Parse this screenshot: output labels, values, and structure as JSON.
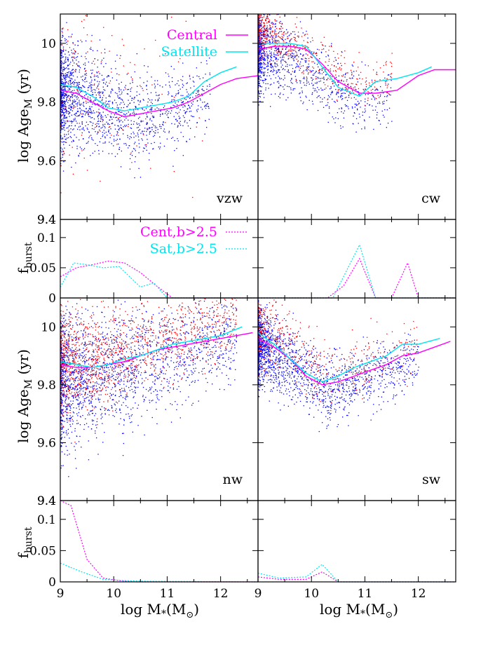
{
  "chart_data": {
    "type": "scatter",
    "x_label": "log M*(M⊙)",
    "x_ticks": [
      "9",
      "10",
      "11",
      "12"
    ],
    "age_ylabel": "log Age_M (yr)",
    "burst_ylabel": "f_burst",
    "age_ticks": [
      "9.4",
      "9.6",
      "9.8",
      "10"
    ],
    "burst_ticks": [
      "0",
      "0.05",
      "0.1"
    ],
    "xlim": [
      9.0,
      12.7
    ],
    "age_ylim": [
      9.4,
      10.1
    ],
    "burst_ylim": [
      0.0,
      0.13
    ],
    "colors": {
      "central": "#ff00ff",
      "satellite": "#00e5ee",
      "red_points": "#ff0000",
      "blue_points": "#0000ff"
    },
    "age_legend": [
      {
        "label": "Central",
        "style": "solid",
        "color": "central"
      },
      {
        "label": "Satellite",
        "style": "solid",
        "color": "satellite"
      }
    ],
    "burst_legend": [
      {
        "label": "Cent,b>2.5",
        "style": "dotted",
        "color": "central"
      },
      {
        "label": "Sat,b>2.5",
        "style": "dotted",
        "color": "satellite"
      }
    ],
    "panels": [
      {
        "tag": "vzw",
        "central": {
          "x": [
            9.0,
            9.3,
            9.6,
            9.9,
            10.2,
            10.5,
            10.8,
            11.1,
            11.4,
            11.7,
            12.0,
            12.3,
            12.7
          ],
          "y": [
            9.84,
            9.83,
            9.8,
            9.77,
            9.75,
            9.76,
            9.77,
            9.78,
            9.8,
            9.83,
            9.86,
            9.88,
            9.89
          ]
        },
        "satellite": {
          "x": [
            9.0,
            9.3,
            9.6,
            9.9,
            10.2,
            10.5,
            10.8,
            11.1,
            11.4,
            11.7,
            12.0,
            12.3
          ],
          "y": [
            9.86,
            9.85,
            9.82,
            9.78,
            9.77,
            9.78,
            9.79,
            9.8,
            9.82,
            9.87,
            9.9,
            9.92
          ]
        },
        "scatter": {
          "peak": [
            9.15,
            9.85
          ],
          "valley": [
            10.4,
            9.76
          ],
          "red_frac": 0.12,
          "count": 1900,
          "red_spread": 0.18,
          "blue_spread": 0.09,
          "max_x": 11.8,
          "decay": 1.4
        }
      },
      {
        "tag": "cw",
        "central": {
          "x": [
            9.0,
            9.3,
            9.6,
            9.9,
            10.2,
            10.5,
            10.9,
            11.2,
            11.6,
            12.0,
            12.3,
            12.7
          ],
          "y": [
            9.98,
            9.99,
            9.99,
            9.98,
            9.93,
            9.87,
            9.83,
            9.83,
            9.84,
            9.89,
            9.91,
            9.91
          ]
        },
        "satellite": {
          "x": [
            9.0,
            9.3,
            9.6,
            9.9,
            10.2,
            10.5,
            10.9,
            11.2,
            11.6,
            12.0,
            12.25
          ],
          "y": [
            10.0,
            10.0,
            10.0,
            9.99,
            9.92,
            9.85,
            9.82,
            9.87,
            9.88,
            9.9,
            9.92
          ]
        },
        "scatter": {
          "peak": [
            9.2,
            10.0
          ],
          "valley": [
            10.9,
            9.82
          ],
          "red_frac": 0.35,
          "count": 1900,
          "red_spread": 0.05,
          "blue_spread": 0.07,
          "max_x": 11.5,
          "decay": 2.0
        }
      },
      {
        "tag": "nw",
        "central": {
          "x": [
            9.0,
            9.3,
            9.6,
            9.9,
            10.2,
            10.5,
            10.8,
            11.1,
            11.4,
            11.7,
            12.0,
            12.3,
            12.6
          ],
          "y": [
            9.87,
            9.86,
            9.86,
            9.87,
            9.88,
            9.9,
            9.92,
            9.93,
            9.94,
            9.95,
            9.96,
            9.97,
            9.98
          ]
        },
        "satellite": {
          "x": [
            9.0,
            9.3,
            9.6,
            9.9,
            10.2,
            10.5,
            10.8,
            11.1,
            11.4,
            11.7,
            12.0,
            12.4
          ],
          "y": [
            9.88,
            9.87,
            9.86,
            9.87,
            9.89,
            9.9,
            9.92,
            9.94,
            9.95,
            9.96,
            9.97,
            10.0
          ]
        },
        "scatter": {
          "peak": [
            9.4,
            9.84
          ],
          "valley": [
            11.2,
            9.93
          ],
          "red_frac": 0.42,
          "count": 3200,
          "red_spread": 0.09,
          "blue_spread": 0.12,
          "max_x": 12.3,
          "decay": 0.9
        }
      },
      {
        "tag": "sw",
        "central": {
          "x": [
            9.0,
            9.3,
            9.6,
            9.9,
            10.2,
            10.5,
            10.8,
            11.1,
            11.4,
            11.7,
            12.0,
            12.3,
            12.6
          ],
          "y": [
            9.96,
            9.93,
            9.89,
            9.83,
            9.8,
            9.81,
            9.83,
            9.85,
            9.87,
            9.9,
            9.91,
            9.93,
            9.95
          ]
        },
        "satellite": {
          "x": [
            9.0,
            9.3,
            9.6,
            9.9,
            10.2,
            10.5,
            10.8,
            11.1,
            11.4,
            11.7,
            12.0,
            12.4
          ],
          "y": [
            9.98,
            9.94,
            9.89,
            9.84,
            9.81,
            9.83,
            9.86,
            9.88,
            9.9,
            9.94,
            9.94,
            9.96
          ]
        },
        "scatter": {
          "peak": [
            9.1,
            9.95
          ],
          "valley": [
            10.3,
            9.8
          ],
          "red_frac": 0.25,
          "count": 2300,
          "red_spread": 0.07,
          "blue_spread": 0.07,
          "max_x": 12.0,
          "decay": 1.5
        }
      }
    ],
    "burst_panels": [
      {
        "central": {
          "x": [
            9.0,
            9.3,
            9.6,
            9.9,
            10.2,
            10.5,
            10.8,
            11.1,
            11.4,
            11.7,
            12.0,
            12.7
          ],
          "y": [
            0.035,
            0.05,
            0.055,
            0.061,
            0.058,
            0.042,
            0.02,
            0.0,
            0.0,
            0.0,
            0.0,
            0.0
          ]
        },
        "satellite": {
          "x": [
            9.0,
            9.25,
            9.5,
            9.8,
            10.1,
            10.5,
            10.75,
            11.0,
            11.3,
            12.7
          ],
          "y": [
            0.018,
            0.058,
            0.055,
            0.05,
            0.052,
            0.018,
            0.025,
            0.0,
            0.0,
            0.0
          ]
        }
      },
      {
        "central": {
          "x": [
            9.0,
            10.3,
            10.6,
            10.9,
            11.2,
            11.5,
            11.8,
            12.0,
            12.3,
            12.7
          ],
          "y": [
            0.0,
            0.0,
            0.02,
            0.065,
            0.0,
            0.0,
            0.058,
            0.0,
            0.0,
            0.0
          ]
        },
        "satellite": {
          "x": [
            9.0,
            10.4,
            10.6,
            10.9,
            11.2,
            12.7
          ],
          "y": [
            0.0,
            0.0,
            0.035,
            0.088,
            0.0,
            0.0
          ]
        }
      },
      {
        "central": {
          "x": [
            9.0,
            9.2,
            9.5,
            9.8,
            10.1,
            10.4,
            12.7
          ],
          "y": [
            0.13,
            0.122,
            0.036,
            0.006,
            0.002,
            0.0,
            0.0
          ]
        },
        "satellite": {
          "x": [
            9.0,
            9.4,
            9.8,
            10.2,
            10.6,
            12.7
          ],
          "y": [
            0.03,
            0.016,
            0.004,
            0.002,
            0.001,
            0.0
          ]
        }
      },
      {
        "central": {
          "x": [
            9.0,
            9.4,
            9.9,
            10.2,
            10.5,
            10.8,
            12.7
          ],
          "y": [
            0.008,
            0.004,
            0.004,
            0.016,
            0.0,
            0.0,
            0.0
          ]
        },
        "satellite": {
          "x": [
            9.0,
            9.4,
            9.9,
            10.2,
            10.5,
            10.8,
            12.7
          ],
          "y": [
            0.014,
            0.006,
            0.008,
            0.028,
            0.0,
            0.0,
            0.0
          ]
        }
      }
    ]
  }
}
